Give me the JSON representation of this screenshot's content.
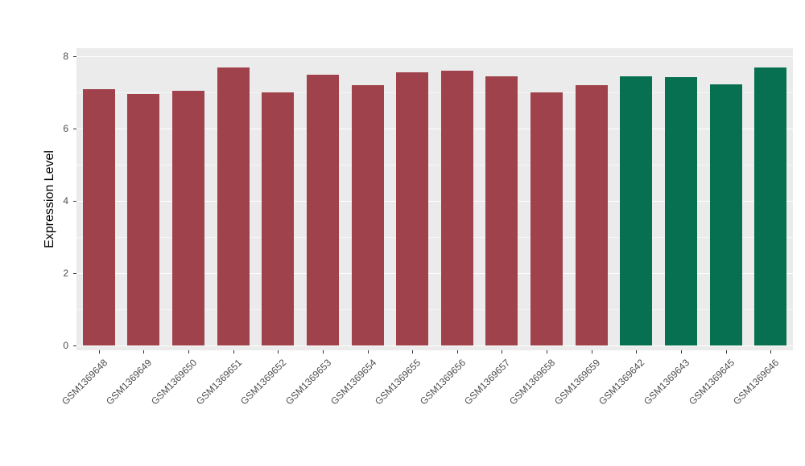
{
  "chart_data": {
    "type": "bar",
    "title": "",
    "xlabel": "",
    "ylabel": "Expression Level",
    "ylim": [
      0,
      8
    ],
    "yticks": [
      0,
      2,
      4,
      6,
      8
    ],
    "grid": "on",
    "legend": "none",
    "panel_bg": "#EBEBEB",
    "grid_color": "#FFFFFF",
    "categories": [
      "GSM1369648",
      "GSM1369649",
      "GSM1369650",
      "GSM1369651",
      "GSM1369652",
      "GSM1369653",
      "GSM1369654",
      "GSM1369655",
      "GSM1369656",
      "GSM1369657",
      "GSM1369658",
      "GSM1369659",
      "GSM1369642",
      "GSM1369643",
      "GSM1369645",
      "GSM1369646"
    ],
    "values": [
      7.1,
      6.95,
      7.05,
      7.7,
      7.0,
      7.5,
      7.2,
      7.55,
      7.6,
      7.45,
      7.0,
      7.2,
      7.45,
      7.43,
      7.22,
      7.7
    ],
    "groups": [
      "red",
      "red",
      "red",
      "red",
      "red",
      "red",
      "red",
      "red",
      "red",
      "red",
      "red",
      "red",
      "green",
      "green",
      "green",
      "green"
    ],
    "colors": {
      "red": "#A0424C",
      "green": "#077050"
    }
  }
}
